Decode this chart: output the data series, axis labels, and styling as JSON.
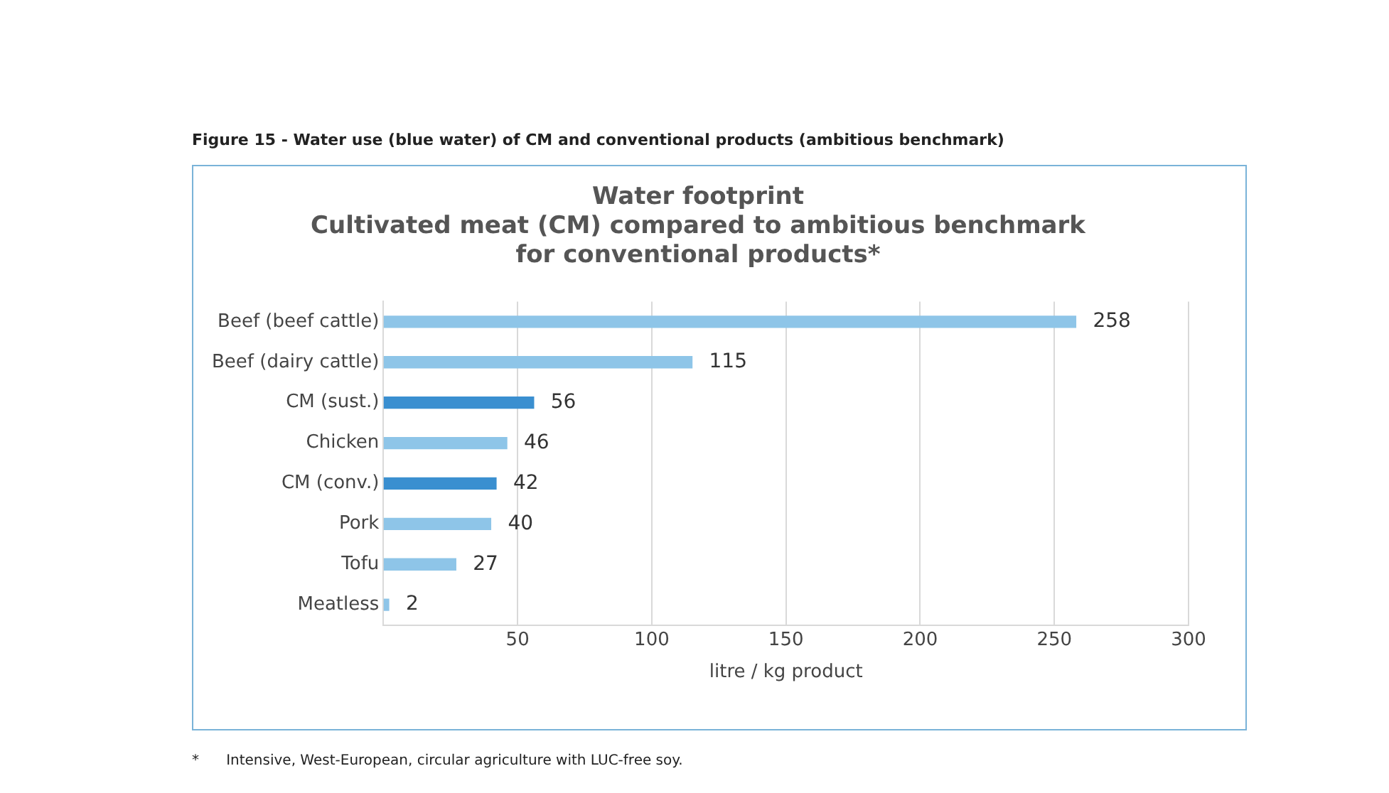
{
  "chart_data": {
    "type": "bar",
    "orientation": "horizontal",
    "title": "Figure 15 - Water use (blue water) of CM and conventional products (ambitious benchmark)",
    "subtitle": "Water footprint\nCultivated meat (CM) compared to ambitious benchmark\nfor conventional products*",
    "categories": [
      "Beef (beef cattle)",
      "Beef (dairy cattle)",
      "CM (sust.)",
      "Chicken",
      "CM (conv.)",
      "Pork",
      "Tofu",
      "Meatless"
    ],
    "values": [
      258,
      115,
      56,
      46,
      42,
      40,
      27,
      2
    ],
    "colors": [
      "#8ec5e8",
      "#8ec5e8",
      "#3a8fd0",
      "#8ec5e8",
      "#3a8fd0",
      "#8ec5e8",
      "#8ec5e8",
      "#8ec5e8"
    ],
    "xlabel": "litre / kg product",
    "xlim": [
      0,
      300
    ],
    "xticks": [
      {
        "value": 0,
        "label": null
      },
      50,
      100,
      150,
      200,
      250,
      300
    ],
    "grid": "x",
    "data_labels": true,
    "legend": false,
    "annotations": [
      "*      Intensive, West-European, circular agriculture with LUC-free soy."
    ]
  }
}
